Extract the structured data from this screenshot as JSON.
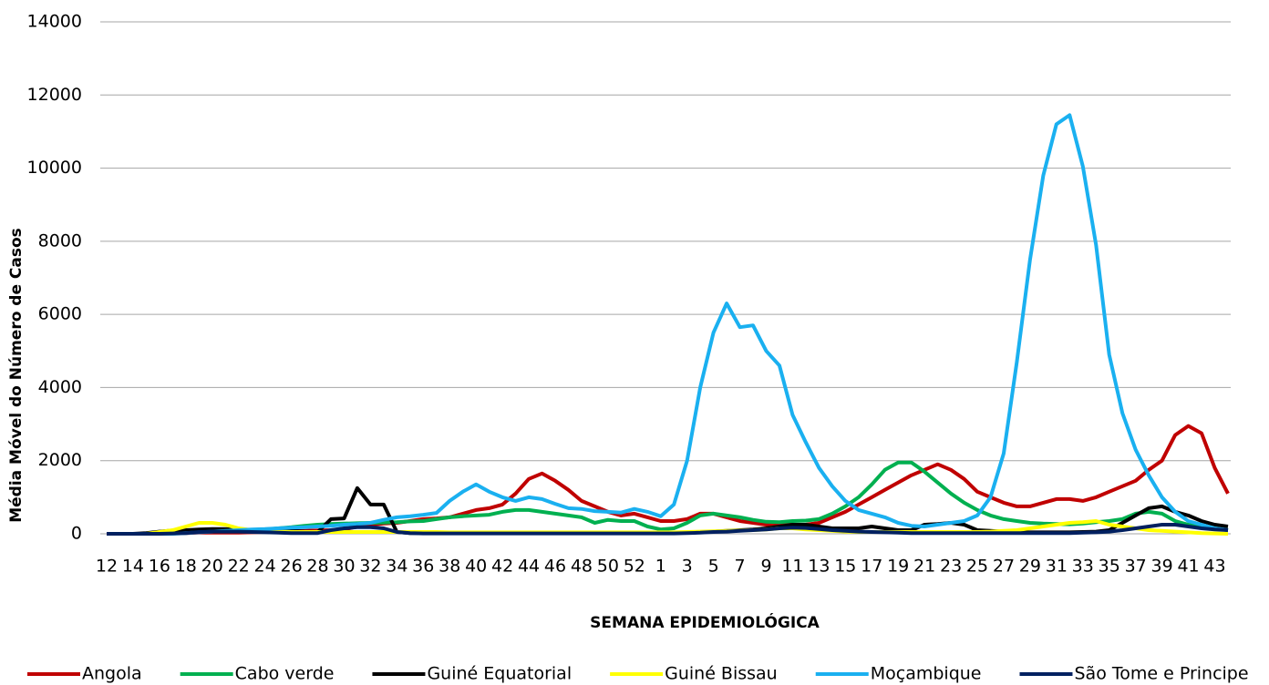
{
  "chart_data": {
    "type": "line",
    "y_label": "Média Móvel do Número de Casos",
    "x_label": "SEMANA EPIDEMIOLÓGICA",
    "categories": [
      "12",
      null,
      "14",
      null,
      "16",
      null,
      "18",
      null,
      "20",
      null,
      "22",
      null,
      "24",
      null,
      "26",
      null,
      "28",
      null,
      "30",
      null,
      "32",
      null,
      "34",
      null,
      "36",
      null,
      "38",
      null,
      "40",
      null,
      "42",
      null,
      "44",
      null,
      "46",
      null,
      "48",
      null,
      "50",
      null,
      "52",
      null,
      "1",
      null,
      "3",
      null,
      "5",
      null,
      "7",
      null,
      "9",
      null,
      "11",
      null,
      "13",
      null,
      "15",
      null,
      "17",
      null,
      "19",
      null,
      "21",
      null,
      "23",
      null,
      "25",
      null,
      "27",
      null,
      "29",
      null,
      "31",
      null,
      "33",
      null,
      "35",
      null,
      "37",
      null,
      "39",
      null,
      "41",
      null,
      "43",
      null
    ],
    "ylim": [
      0,
      14000
    ],
    "yticks": [
      0,
      2000,
      4000,
      6000,
      8000,
      10000,
      12000,
      14000
    ],
    "grid": true,
    "legend": "bottom",
    "series": [
      {
        "name": "Angola",
        "color": "#c00000",
        "values": [
          0,
          0,
          0,
          0,
          0,
          10,
          20,
          30,
          30,
          30,
          30,
          40,
          50,
          60,
          70,
          80,
          90,
          100,
          120,
          200,
          250,
          280,
          300,
          350,
          400,
          420,
          450,
          550,
          650,
          700,
          800,
          1100,
          1500,
          1650,
          1450,
          1200,
          900,
          750,
          600,
          500,
          550,
          450,
          350,
          350,
          400,
          550,
          550,
          450,
          350,
          300,
          250,
          250,
          250,
          250,
          300,
          450,
          600,
          800,
          1000,
          1200,
          1400,
          1600,
          1750,
          1900,
          1750,
          1500,
          1150,
          1000,
          850,
          750,
          750,
          850,
          950,
          950,
          900,
          1000,
          1150,
          1300,
          1450,
          1750,
          2000,
          2700,
          2950,
          2750,
          1800,
          1100
        ]
      },
      {
        "name": "Cabo verde",
        "color": "#00b050",
        "values": [
          0,
          0,
          0,
          0,
          0,
          20,
          50,
          80,
          100,
          100,
          100,
          110,
          120,
          150,
          180,
          220,
          250,
          270,
          280,
          290,
          300,
          310,
          320,
          340,
          350,
          400,
          450,
          480,
          500,
          520,
          600,
          650,
          650,
          600,
          550,
          500,
          450,
          300,
          380,
          350,
          350,
          200,
          120,
          150,
          300,
          500,
          550,
          500,
          450,
          380,
          330,
          320,
          350,
          360,
          400,
          550,
          750,
          1000,
          1350,
          1750,
          1950,
          1950,
          1700,
          1400,
          1100,
          850,
          650,
          500,
          400,
          350,
          300,
          280,
          270,
          260,
          280,
          320,
          350,
          400,
          550,
          600,
          550,
          350,
          250,
          200,
          150,
          100
        ]
      },
      {
        "name": "Guiné Equatorial",
        "color": "#000000",
        "values": [
          0,
          0,
          0,
          20,
          60,
          90,
          100,
          120,
          130,
          130,
          120,
          110,
          100,
          90,
          80,
          60,
          50,
          400,
          420,
          1250,
          800,
          800,
          50,
          20,
          20,
          20,
          20,
          20,
          20,
          20,
          20,
          20,
          20,
          20,
          20,
          20,
          20,
          20,
          20,
          20,
          20,
          20,
          20,
          20,
          30,
          40,
          60,
          80,
          100,
          120,
          150,
          200,
          250,
          250,
          200,
          150,
          150,
          150,
          200,
          150,
          100,
          100,
          250,
          270,
          300,
          250,
          100,
          80,
          60,
          50,
          40,
          40,
          40,
          40,
          50,
          60,
          100,
          300,
          500,
          700,
          750,
          600,
          500,
          350,
          250,
          200
        ]
      },
      {
        "name": "Guiné Bissau",
        "color": "#ffff00",
        "values": [
          0,
          0,
          0,
          0,
          50,
          100,
          200,
          300,
          300,
          250,
          150,
          100,
          80,
          60,
          50,
          50,
          50,
          50,
          50,
          50,
          50,
          50,
          50,
          50,
          50,
          50,
          40,
          40,
          40,
          40,
          40,
          40,
          40,
          40,
          40,
          40,
          40,
          40,
          40,
          40,
          40,
          40,
          40,
          40,
          50,
          60,
          70,
          80,
          90,
          100,
          120,
          150,
          150,
          120,
          100,
          80,
          60,
          50,
          50,
          50,
          50,
          50,
          50,
          50,
          50,
          50,
          50,
          60,
          80,
          100,
          150,
          200,
          250,
          300,
          320,
          350,
          250,
          200,
          150,
          100,
          80,
          60,
          40,
          20,
          10,
          0
        ]
      },
      {
        "name": "Moçambique",
        "color": "#1ab0f0",
        "values": [
          0,
          0,
          0,
          0,
          0,
          0,
          20,
          40,
          60,
          80,
          100,
          120,
          130,
          150,
          170,
          180,
          200,
          220,
          250,
          270,
          300,
          380,
          450,
          480,
          520,
          570,
          900,
          1150,
          1350,
          1150,
          1000,
          900,
          1000,
          950,
          820,
          700,
          680,
          620,
          600,
          580,
          680,
          600,
          480,
          800,
          2000,
          4000,
          5500,
          6300,
          5650,
          5700,
          5000,
          4600,
          3250,
          2500,
          1800,
          1300,
          900,
          650,
          550,
          450,
          300,
          220,
          200,
          250,
          300,
          350,
          500,
          1000,
          2200,
          4700,
          7500,
          9800,
          11200,
          11450,
          10050,
          7900,
          4900,
          3300,
          2300,
          1600,
          1000,
          600,
          350,
          250,
          150,
          100
        ]
      },
      {
        "name": "São Tome e Principe",
        "color": "#002060",
        "values": [
          0,
          0,
          0,
          0,
          0,
          10,
          20,
          50,
          60,
          60,
          60,
          50,
          40,
          30,
          20,
          20,
          20,
          100,
          150,
          180,
          180,
          150,
          50,
          20,
          10,
          10,
          10,
          10,
          10,
          10,
          10,
          10,
          10,
          10,
          10,
          10,
          10,
          10,
          10,
          10,
          10,
          10,
          10,
          10,
          20,
          30,
          50,
          60,
          80,
          100,
          120,
          150,
          170,
          160,
          130,
          100,
          80,
          60,
          50,
          40,
          30,
          20,
          20,
          20,
          20,
          20,
          20,
          20,
          20,
          20,
          20,
          20,
          20,
          20,
          30,
          40,
          60,
          100,
          150,
          200,
          250,
          250,
          200,
          150,
          120,
          100
        ]
      }
    ]
  }
}
